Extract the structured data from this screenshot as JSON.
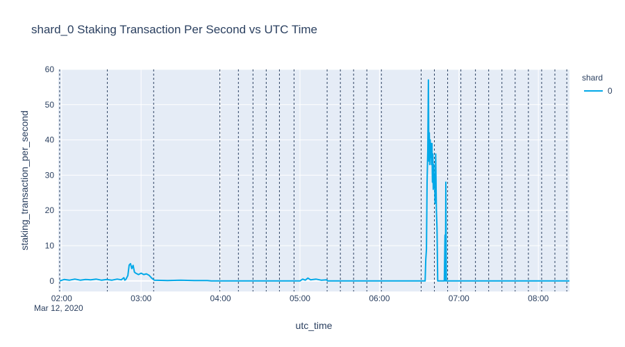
{
  "chart_data": {
    "type": "line",
    "title": "shard_0 Staking Transaction Per Second vs UTC Time",
    "xlabel": "utc_time",
    "ylabel": "staking_transaction_per_second",
    "date_label": "Mar 12, 2020",
    "x_range": [
      "01:57:30",
      "08:23:30"
    ],
    "ylim": [
      -3,
      60
    ],
    "x_ticks": [
      "02:00",
      "03:00",
      "04:00",
      "05:00",
      "06:00",
      "07:00",
      "08:00"
    ],
    "y_ticks": [
      0,
      10,
      20,
      30,
      40,
      50,
      60
    ],
    "grid": true,
    "legend": {
      "title": "shard",
      "position": "top-right",
      "entries": [
        "0"
      ]
    },
    "vlines": [
      "01:58:30",
      "02:34:30",
      "03:09:30",
      "03:59:30",
      "04:13:30",
      "04:24:30",
      "04:34:30",
      "04:44:30",
      "04:55:30",
      "05:20:30",
      "05:30:30",
      "05:40:30",
      "05:50:30",
      "06:01:30",
      "06:31:30",
      "06:41:30",
      "06:51:30",
      "07:01:30",
      "07:12:30",
      "07:22:30",
      "07:32:30",
      "07:42:30",
      "07:52:30",
      "08:02:30",
      "08:12:30",
      "08:21:30"
    ],
    "series": [
      {
        "name": "0",
        "color": "#00a8e8",
        "points": [
          [
            "01:58:30",
            0
          ],
          [
            "02:02:00",
            0.4
          ],
          [
            "02:06:00",
            0.2
          ],
          [
            "02:10:00",
            0.5
          ],
          [
            "02:14:00",
            0.2
          ],
          [
            "02:18:00",
            0.4
          ],
          [
            "02:22:00",
            0.3
          ],
          [
            "02:26:00",
            0.5
          ],
          [
            "02:30:00",
            0.2
          ],
          [
            "02:34:00",
            0.4
          ],
          [
            "02:38:00",
            0.2
          ],
          [
            "02:42:00",
            0.5
          ],
          [
            "02:45:00",
            0.3
          ],
          [
            "02:47:00",
            0.9
          ],
          [
            "02:47:40",
            0.2
          ],
          [
            "02:48:30",
            0.4
          ],
          [
            "02:50:00",
            1.5
          ],
          [
            "02:51:00",
            4.5
          ],
          [
            "02:52:00",
            4.9
          ],
          [
            "02:53:00",
            3.5
          ],
          [
            "02:54:00",
            4.4
          ],
          [
            "02:55:00",
            2.5
          ],
          [
            "02:56:00",
            2.2
          ],
          [
            "02:58:00",
            1.8
          ],
          [
            "03:00:00",
            2.2
          ],
          [
            "03:02:00",
            1.8
          ],
          [
            "03:04:00",
            2.0
          ],
          [
            "03:06:00",
            1.6
          ],
          [
            "03:08:00",
            0.8
          ],
          [
            "03:10:00",
            0.2
          ],
          [
            "03:20:00",
            0.1
          ],
          [
            "03:30:00",
            0.2
          ],
          [
            "03:40:00",
            0.1
          ],
          [
            "03:50:00",
            0.1
          ],
          [
            "03:53:00",
            0
          ],
          [
            "05:00:00",
            0
          ],
          [
            "05:02:00",
            0.5
          ],
          [
            "05:04:00",
            0.2
          ],
          [
            "05:06:00",
            0.8
          ],
          [
            "05:08:00",
            0.3
          ],
          [
            "05:12:00",
            0.5
          ],
          [
            "05:16:00",
            0.2
          ],
          [
            "05:20:00",
            0.3
          ],
          [
            "05:21:00",
            0
          ],
          [
            "06:34:30",
            0
          ],
          [
            "06:35:00",
            6
          ],
          [
            "06:35:30",
            9
          ],
          [
            "06:36:00",
            28
          ],
          [
            "06:36:30",
            37
          ],
          [
            "06:37:00",
            57
          ],
          [
            "06:37:20",
            34
          ],
          [
            "06:37:40",
            42
          ],
          [
            "06:38:00",
            33
          ],
          [
            "06:38:20",
            40
          ],
          [
            "06:38:40",
            35
          ],
          [
            "06:39:00",
            39
          ],
          [
            "06:39:20",
            33
          ],
          [
            "06:39:40",
            39
          ],
          [
            "06:40:00",
            28
          ],
          [
            "06:40:20",
            36
          ],
          [
            "06:40:40",
            26
          ],
          [
            "06:41:00",
            33
          ],
          [
            "06:41:20",
            27
          ],
          [
            "06:41:40",
            30
          ],
          [
            "06:42:00",
            22
          ],
          [
            "06:42:30",
            36
          ],
          [
            "06:43:00",
            20
          ],
          [
            "06:43:30",
            15
          ],
          [
            "06:44:00",
            0
          ],
          [
            "06:49:00",
            0
          ],
          [
            "06:49:30",
            13
          ],
          [
            "06:49:50",
            0
          ],
          [
            "06:50:10",
            28
          ],
          [
            "06:50:30",
            0
          ],
          [
            "08:23:30",
            0
          ]
        ]
      }
    ]
  }
}
